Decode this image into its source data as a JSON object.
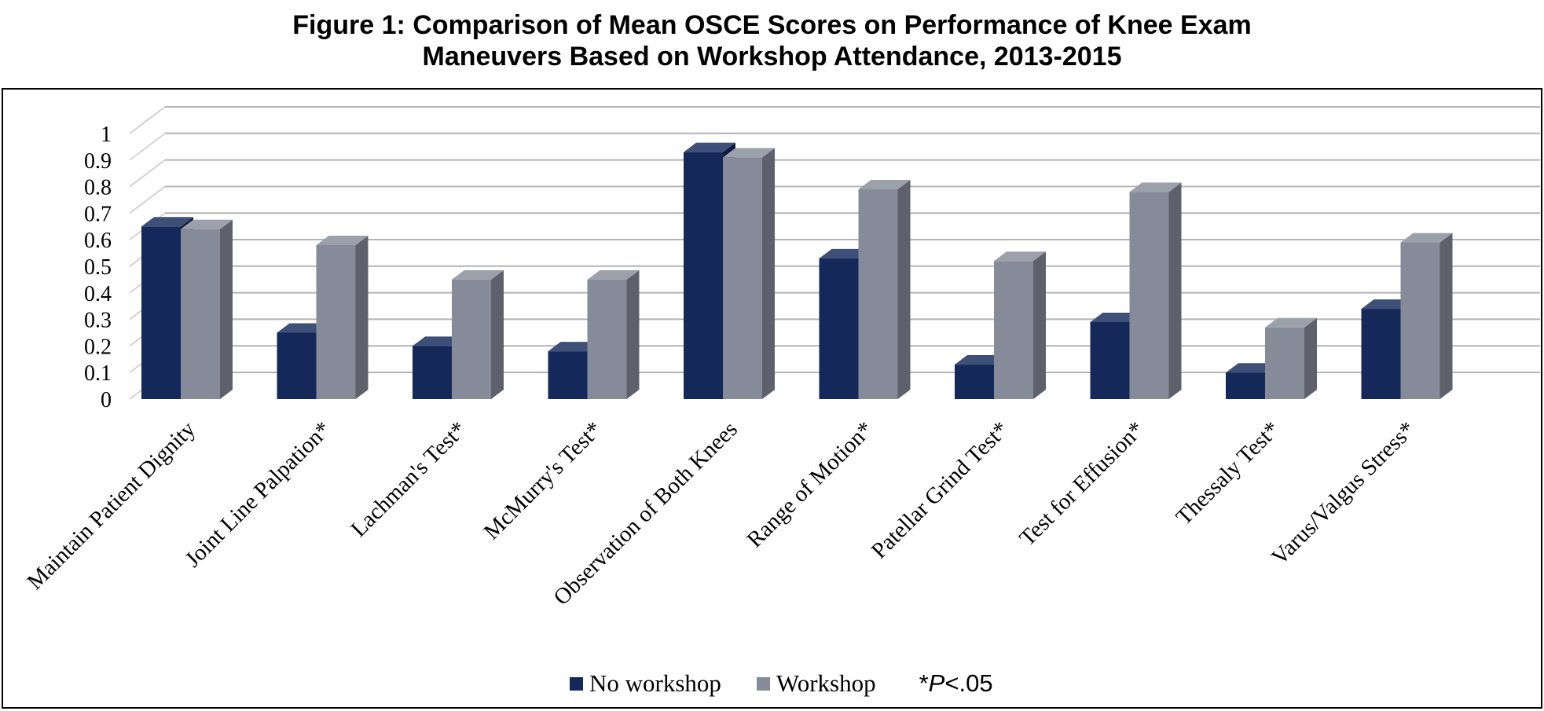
{
  "chart_data": {
    "type": "bar",
    "title_lines": [
      "Figure 1: Comparison of Mean OSCE Scores on Performance of Knee Exam",
      "Maneuvers Based on Workshop Attendance, 2013-2015"
    ],
    "categories": [
      "Maintain Patient Dignity",
      "Joint Line Palpation*",
      "Lachman's Test*",
      "McMurry's Test*",
      "Observation of Both Knees",
      "Range of Motion*",
      "Patellar Grind Test*",
      "Test for Effusion*",
      "Thessaly Test*",
      "Varus/Valgus Stress*"
    ],
    "series": [
      {
        "name": "No workshop",
        "color": "#14285a",
        "values": [
          0.65,
          0.25,
          0.2,
          0.18,
          0.93,
          0.53,
          0.13,
          0.29,
          0.1,
          0.34
        ]
      },
      {
        "name": "Workshop",
        "color": "#868b99",
        "values": [
          0.64,
          0.58,
          0.45,
          0.45,
          0.91,
          0.79,
          0.52,
          0.78,
          0.27,
          0.59
        ]
      }
    ],
    "y_ticks": [
      "0",
      "0.1",
      "0.2",
      "0.3",
      "0.4",
      "0.5",
      "0.6",
      "0.7",
      "0.8",
      "0.9",
      "1"
    ],
    "ylim": [
      0,
      1
    ],
    "grid": true,
    "legend_position": "bottom",
    "note": "*P<.05",
    "note_parts": {
      "prefix": "*",
      "italic": "P",
      "suffix": "<.05"
    }
  }
}
